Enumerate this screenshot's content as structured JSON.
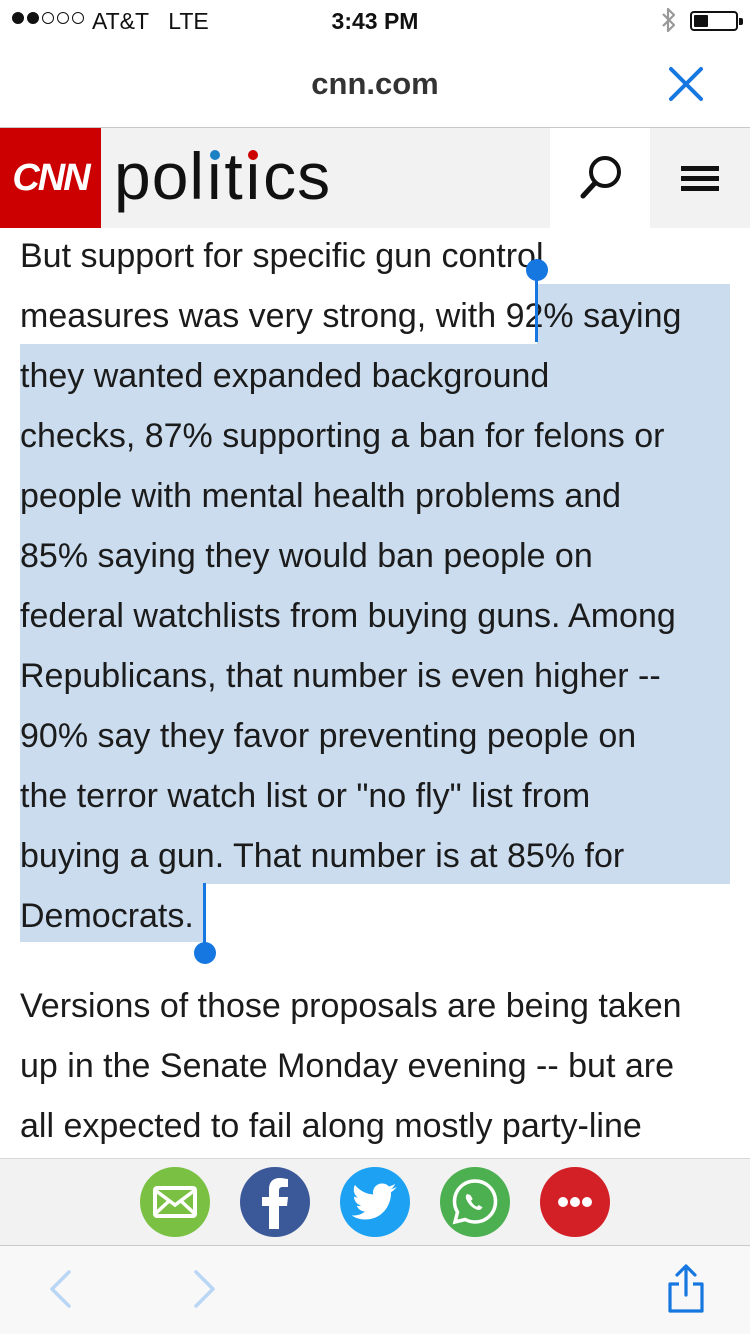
{
  "status_bar": {
    "carrier": "AT&T",
    "network": "LTE",
    "time": "3:43 PM",
    "signal_bars_filled": 2,
    "signal_bars_total": 5,
    "battery_level": 0.3
  },
  "browser": {
    "url": "cnn.com",
    "close_icon": "close-icon"
  },
  "site_header": {
    "logo_text": "CNN",
    "section": "politics",
    "brand_color": "#cc0000",
    "search_icon": "search-icon",
    "menu_icon": "hamburger-menu-icon"
  },
  "article": {
    "selection_color": "#cadcee",
    "handle_color": "#1677e0",
    "lines": [
      "But support for specific gun control",
      "measures was very strong, with 92% saying",
      "they wanted expanded background",
      "checks, 87% supporting a ban for felons or",
      "people with mental health problems and",
      "85% saying they would ban people on",
      "federal watchlists from buying guns. Among",
      "Republicans, that number is even higher --",
      "90% say they favor preventing people on",
      "the terror watch list or \"no fly\" list from",
      "buying a gun. That number is at 85% for",
      "Democrats.",
      "Versions of those proposals are being taken",
      "up in the Senate Monday evening -- but are",
      "all expected to fail along mostly party-line"
    ]
  },
  "share_bar": {
    "items": [
      {
        "name": "email",
        "icon": "mail-icon",
        "color": "#7ac143"
      },
      {
        "name": "facebook",
        "icon": "facebook-icon",
        "color": "#3b5998"
      },
      {
        "name": "twitter",
        "icon": "twitter-icon",
        "color": "#1da1f2"
      },
      {
        "name": "whatsapp",
        "icon": "whatsapp-icon",
        "color": "#4caf50"
      },
      {
        "name": "more",
        "icon": "more-icon",
        "color": "#d32027"
      }
    ]
  },
  "toolbar": {
    "back_icon": "chevron-left-icon",
    "forward_icon": "chevron-right-icon",
    "share_icon": "share-icon",
    "accent": "#1677e0"
  }
}
